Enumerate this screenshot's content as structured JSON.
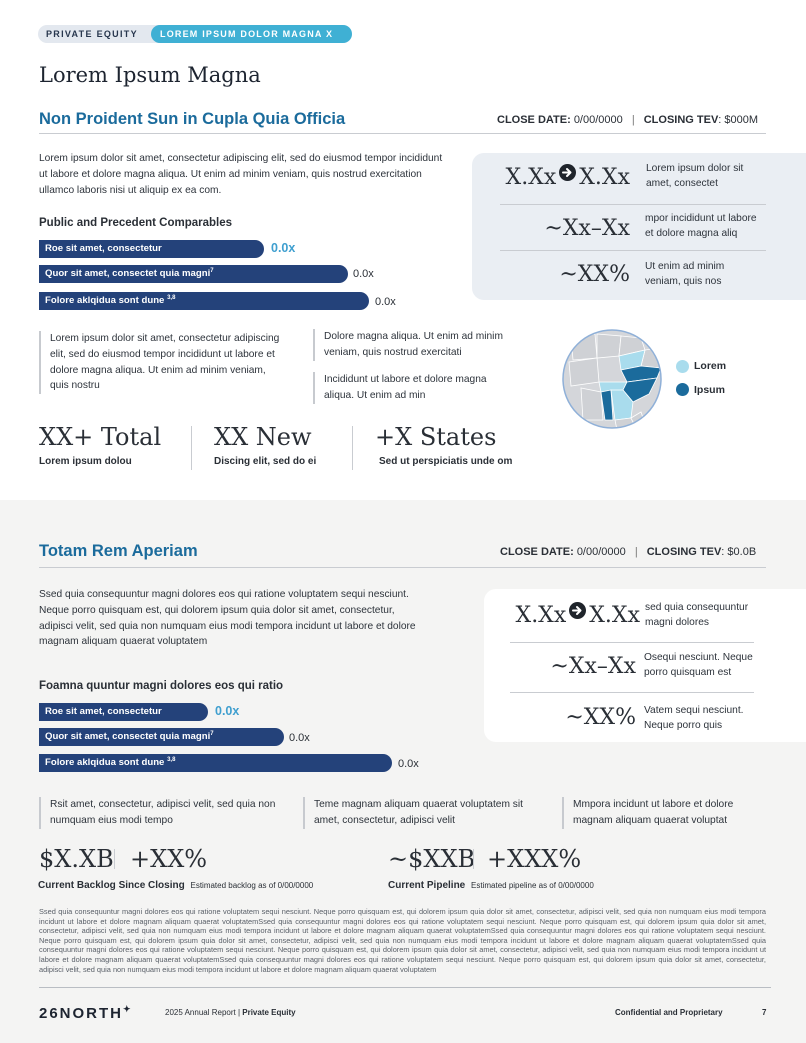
{
  "header": {
    "tag_primary": "PRIVATE EQUITY",
    "tag_secondary": "LOREM IPSUM DOLOR MAGNA X"
  },
  "page_title": "Lorem Ipsum Magna",
  "section1": {
    "title": "Non Proident Sun in Cupla Quia Officia",
    "close_date_label": "CLOSE DATE:",
    "close_date_value": "0/00/0000",
    "sep": "|",
    "tev_label": "CLOSING TEV",
    "tev_value": ": $000M",
    "intro": "Lorem ipsum dolor sit amet, consectetur adipiscing elit, sed do eiusmod tempor incididunt ut labore et dolore magna aliqua. Ut enim ad minim veniam, quis nostrud exercitation ullamco laboris nisi ut aliquip ex ea com.",
    "comparables_title": "Public and Precedent Comparables",
    "bars": [
      {
        "label": "Roe sit amet, consectetur",
        "sup": "",
        "value": "0.0x"
      },
      {
        "label": "Quor sit amet, consectet quia magni",
        "sup": "7",
        "value": "0.0x"
      },
      {
        "label": "Folore aklqidua sont dune ",
        "sup": "3,8",
        "value": "0.0x"
      }
    ],
    "stats": [
      {
        "from": "X.Xx",
        "to": "X.Xx",
        "desc": "Lorem ipsum dolor sit amet, consectet"
      },
      {
        "big": "~Xx–Xx",
        "desc": "mpor incididunt ut labore et dolore magna aliq"
      },
      {
        "big": "~XX%",
        "desc": "Ut enim ad minim veniam, quis nos"
      }
    ],
    "quote_left": "Lorem ipsum dolor sit amet, consectetur adipiscing elit, sed do eiusmod tempor incididunt ut labore et dolore magna aliqua. Ut enim ad minim veniam, quis nostru",
    "quote_mid_1": "Dolore magna aliqua. Ut enim ad minim veniam, quis nostrud exercitati",
    "quote_mid_2": "Incididunt ut labore et dolore magna aliqua. Ut enim ad min",
    "legend": [
      {
        "label": "Lorem",
        "color": "#a9dced"
      },
      {
        "label": "Ipsum",
        "color": "#1b6b9c"
      }
    ],
    "kpis": [
      {
        "value": "XX+ Total",
        "label": "Lorem ipsum dolou"
      },
      {
        "value": "XX New",
        "label": "Discing elit, sed do ei"
      },
      {
        "value": "+X States",
        "label": "Sed ut perspiciatis unde om"
      }
    ]
  },
  "section2": {
    "title": "Totam Rem Aperiam",
    "close_date_label": "CLOSE DATE:",
    "close_date_value": "0/00/0000",
    "sep": "|",
    "tev_label": "CLOSING TEV",
    "tev_value": ": $0.0B",
    "intro": "Ssed quia consequuntur magni dolores eos qui ratione voluptatem sequi nesciunt. Neque porro quisquam est, qui dolorem ipsum quia dolor sit amet, consectetur, adipisci velit, sed quia non numquam eius modi tempora incidunt ut labore et dolore magnam aliquam quaerat voluptatem",
    "ratio_title": "Foamna quuntur magni dolores eos qui ratio",
    "bars": [
      {
        "label": "Roe sit amet, consectetur",
        "sup": "",
        "value": "0.0x"
      },
      {
        "label": "Quor sit amet, consectet quia magni",
        "sup": "7",
        "value": "0.0x"
      },
      {
        "label": "Folore aklqidua sont dune ",
        "sup": "3,8",
        "value": "0.0x"
      }
    ],
    "stats": [
      {
        "from": "X.Xx",
        "to": "X.Xx",
        "desc": "sed quia consequuntur magni dolores"
      },
      {
        "big": "~Xx–Xx",
        "desc": "Osequi nesciunt. Neque porro quisquam est"
      },
      {
        "big": "~XX%",
        "desc": "Vatem sequi nesciunt. Neque porro quis"
      }
    ],
    "quotes": [
      "Rsit amet, consectetur, adipisci velit, sed quia non numquam eius modi tempo",
      "Teme magnam aliquam quaerat voluptatem sit amet, consectetur, adipisci velit",
      "Mmpora incidunt ut labore et dolore magnam aliquam quaerat voluptat"
    ],
    "metrics_left": {
      "v1": "$X.XB",
      "v2": "+XX%",
      "label": "Current Backlog Since Closing",
      "caption": "Estimated backlog as of 0/00/0000"
    },
    "metrics_right": {
      "v1": "~$XXB",
      "v2": "+XXX%",
      "label": "Current Pipeline",
      "caption": "Estimated pipeline as of 0/00/0000"
    },
    "fine_print": "Ssed quia consequuntur magni dolores eos qui ratione voluptatem sequi nesciunt. Neque porro quisquam est, qui dolorem ipsum quia dolor sit amet, consectetur, adipisci velit, sed quia non numquam eius modi tempora incidunt ut labore et dolore magnam aliquam quaerat voluptatemSsed quia consequuntur magni dolores eos qui ratione voluptatem sequi nesciunt. Neque porro quisquam est, qui dolorem ipsum quia dolor sit amet, consectetur, adipisci velit, sed quia non numquam eius modi tempora incidunt ut labore et dolore magnam aliquam quaerat voluptatemSsed quia consequuntur magni dolores eos qui ratione voluptatem sequi nesciunt. Neque porro quisquam est, qui dolorem ipsum quia dolor sit amet, consectetur, adipisci velit, sed quia non numquam eius modi tempora incidunt ut labore et dolore magnam aliquam quaerat voluptatemSsed quia consequuntur magni dolores eos qui ratione voluptatem sequi nesciunt. Neque porro quisquam est, qui dolorem ipsum quia dolor sit amet, consectetur, adipisci velit, sed quia non numquam eius modi tempora incidunt ut labore et dolore magnam aliquam quaerat voluptatemSsed quia consequuntur magni dolores eos qui ratione voluptatem sequi nesciunt. Neque porro quisquam est, qui dolorem ipsum quia dolor sit amet, consectetur, adipisci velit, sed quia non numquam eius modi tempora incidunt ut labore et dolore magnam aliquam quaerat voluptatem"
  },
  "footer": {
    "logo": "26NORTH",
    "report": "2025 Annual Report | ",
    "report_bold": "Private Equity",
    "confidential": "Confidential and Proprietary",
    "page_number": "7"
  }
}
